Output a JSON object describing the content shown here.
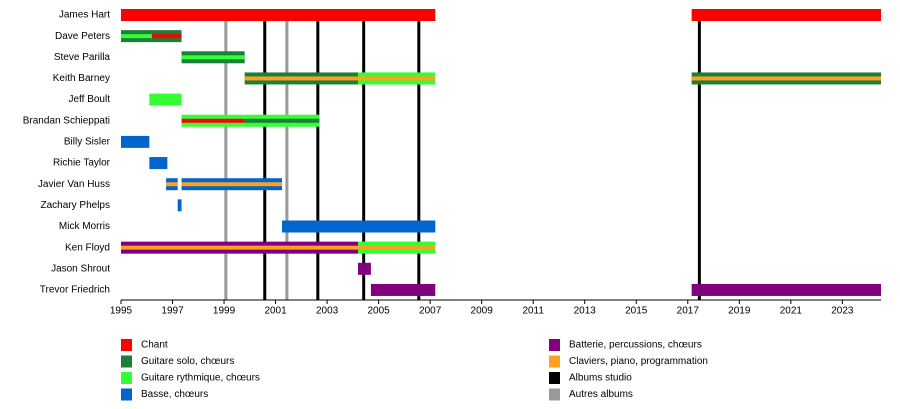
{
  "chart_data": {
    "type": "timeline",
    "roles": [
      {
        "name": "Chant",
        "color": "#ff0000"
      },
      {
        "name": "Guitare solo, chœurs",
        "color": "#1a7f37"
      },
      {
        "name": "Guitare rythmique, chœurs",
        "color": "#33ff33"
      },
      {
        "name": "Basse, chœurs",
        "color": "#0066cc"
      },
      {
        "name": "Batterie, percussions, chœurs",
        "color": "#800080"
      },
      {
        "name": "Claviers, piano, programmation",
        "color": "#ffa020"
      },
      {
        "name": "Albums studio",
        "color": "#000000"
      },
      {
        "name": "Autres albums",
        "color": "#999999"
      }
    ],
    "members": [
      {
        "name": "James Hart",
        "bars": [
          {
            "start": 1995,
            "end": 2007.2,
            "role": 0
          },
          {
            "start": 2017.15,
            "end": 2024.5,
            "role": 0
          }
        ]
      },
      {
        "name": "Dave Peters",
        "bars": [
          {
            "start": 1995,
            "end": 1996.2,
            "role": 1,
            "stripe": 2
          },
          {
            "start": 1996.2,
            "end": 1997.35,
            "role": 1,
            "stripe": 0
          }
        ]
      },
      {
        "name": "Steve Parilla",
        "bars": [
          {
            "start": 1997.35,
            "end": 1999.8,
            "role": 1,
            "stripe": 2
          }
        ]
      },
      {
        "name": "Keith Barney",
        "bars": [
          {
            "start": 1999.8,
            "end": 2004.2,
            "role": 1,
            "stripe": 5
          },
          {
            "start": 2004.2,
            "end": 2007.2,
            "role": 2,
            "stripe": 5
          },
          {
            "start": 2017.15,
            "end": 2024.5,
            "role": 1,
            "stripe": 5
          }
        ]
      },
      {
        "name": "Jeff Boult",
        "bars": [
          {
            "start": 1996.1,
            "end": 1997.35,
            "role": 2
          }
        ]
      },
      {
        "name": "Brandan Schieppati",
        "bars": [
          {
            "start": 1997.35,
            "end": 1999.8,
            "role": 2,
            "stripe": 0
          },
          {
            "start": 1999.8,
            "end": 2002.7,
            "role": 2,
            "stripe": 1
          }
        ]
      },
      {
        "name": "Billy Sisler",
        "bars": [
          {
            "start": 1995,
            "end": 1996.1,
            "role": 3
          }
        ]
      },
      {
        "name": "Richie Taylor",
        "bars": [
          {
            "start": 1996.1,
            "end": 1996.8,
            "role": 3
          }
        ]
      },
      {
        "name": "Javier Van Huss",
        "bars": [
          {
            "start": 1996.75,
            "end": 1997.2,
            "role": 3,
            "stripe": 5
          },
          {
            "start": 1997.35,
            "end": 2001.25,
            "role": 3,
            "stripe": 5
          }
        ]
      },
      {
        "name": "Zachary Phelps",
        "bars": [
          {
            "start": 1997.2,
            "end": 1997.35,
            "role": 3
          }
        ]
      },
      {
        "name": "Mick Morris",
        "bars": [
          {
            "start": 2001.25,
            "end": 2007.2,
            "role": 3
          }
        ]
      },
      {
        "name": "Ken Floyd",
        "bars": [
          {
            "start": 1995,
            "end": 2004.2,
            "role": 4,
            "stripe": 5
          },
          {
            "start": 2004.2,
            "end": 2007.2,
            "role": 2,
            "stripe": 5
          }
        ]
      },
      {
        "name": "Jason Shrout",
        "bars": [
          {
            "start": 2004.2,
            "end": 2004.7,
            "role": 4
          }
        ]
      },
      {
        "name": "Trevor Friedrich",
        "bars": [
          {
            "start": 2004.7,
            "end": 2007.2,
            "role": 4
          },
          {
            "start": 2017.15,
            "end": 2024.5,
            "role": 4
          }
        ]
      }
    ],
    "albums": [
      {
        "year": 1999.07,
        "role": 7
      },
      {
        "year": 2000.58,
        "role": 6
      },
      {
        "year": 2001.44,
        "role": 7
      },
      {
        "year": 2002.64,
        "role": 6
      },
      {
        "year": 2004.42,
        "role": 6
      },
      {
        "year": 2006.56,
        "role": 6
      },
      {
        "year": 2017.45,
        "role": 6
      }
    ],
    "xlim": [
      1995,
      2024.5
    ],
    "xticks": [
      1995,
      1997,
      1999,
      2001,
      2003,
      2005,
      2007,
      2009,
      2011,
      2013,
      2015,
      2017,
      2019,
      2021,
      2023
    ]
  }
}
